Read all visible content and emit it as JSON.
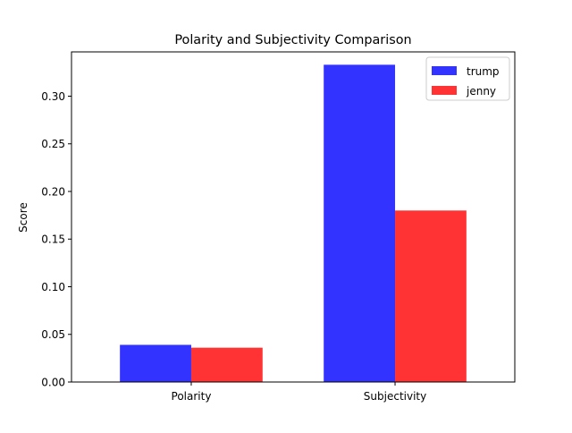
{
  "chart_data": {
    "type": "bar",
    "title": "Polarity and Subjectivity Comparison",
    "xlabel": "",
    "ylabel": "Score",
    "categories": [
      "Polarity",
      "Subjectivity"
    ],
    "series": [
      {
        "name": "trump",
        "values": [
          0.039,
          0.333
        ],
        "color": "#3333ff"
      },
      {
        "name": "jenny",
        "values": [
          0.036,
          0.18
        ],
        "color": "#ff3333"
      }
    ],
    "ylim": [
      0,
      0.3465
    ],
    "yticks": [
      "0.00",
      "0.05",
      "0.10",
      "0.15",
      "0.20",
      "0.25",
      "0.30"
    ],
    "legend_position": "top-right",
    "grid": false
  }
}
